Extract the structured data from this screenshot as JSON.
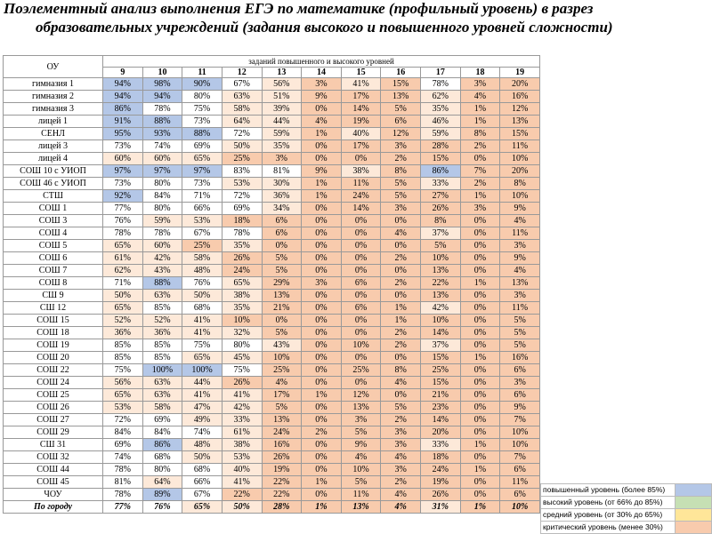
{
  "title": {
    "line1": "Поэлементный анализ выполнения ЕГЭ по математике (профильный уровень) в разрез",
    "line2": "образовательных учреждений (задания высокого и повышенного уровней сложности)"
  },
  "table": {
    "corner": "ОУ",
    "group_header": "заданий повышенного и высокого уровней",
    "columns": [
      "9",
      "10",
      "11",
      "12",
      "13",
      "14",
      "15",
      "16",
      "17",
      "18",
      "19"
    ],
    "rows": [
      {
        "name": "гимназия 1",
        "values": [
          "94%",
          "98%",
          "90%",
          "67%",
          "56%",
          "3%",
          "41%",
          "15%",
          "78%",
          "3%",
          "20%"
        ]
      },
      {
        "name": "гимназия 2",
        "values": [
          "94%",
          "94%",
          "80%",
          "63%",
          "51%",
          "9%",
          "17%",
          "13%",
          "62%",
          "4%",
          "16%"
        ]
      },
      {
        "name": "гимназия 3",
        "values": [
          "86%",
          "78%",
          "75%",
          "58%",
          "39%",
          "0%",
          "14%",
          "5%",
          "35%",
          "1%",
          "12%"
        ]
      },
      {
        "name": "лицей 1",
        "values": [
          "91%",
          "88%",
          "73%",
          "64%",
          "44%",
          "4%",
          "19%",
          "6%",
          "46%",
          "1%",
          "13%"
        ]
      },
      {
        "name": "СЕНЛ",
        "values": [
          "95%",
          "93%",
          "88%",
          "72%",
          "59%",
          "1%",
          "40%",
          "12%",
          "59%",
          "8%",
          "15%"
        ]
      },
      {
        "name": "лицей 3",
        "values": [
          "73%",
          "74%",
          "69%",
          "50%",
          "35%",
          "0%",
          "17%",
          "3%",
          "28%",
          "2%",
          "11%"
        ]
      },
      {
        "name": "лицей 4",
        "values": [
          "60%",
          "60%",
          "65%",
          "25%",
          "3%",
          "0%",
          "0%",
          "2%",
          "15%",
          "0%",
          "10%"
        ]
      },
      {
        "name": "СОШ 10 с УИОП",
        "values": [
          "97%",
          "97%",
          "97%",
          "83%",
          "81%",
          "9%",
          "38%",
          "8%",
          "86%",
          "7%",
          "20%"
        ]
      },
      {
        "name": "СОШ 46 с УИОП",
        "values": [
          "73%",
          "80%",
          "73%",
          "53%",
          "30%",
          "1%",
          "11%",
          "5%",
          "33%",
          "2%",
          "8%"
        ]
      },
      {
        "name": "СТШ",
        "values": [
          "92%",
          "84%",
          "71%",
          "72%",
          "36%",
          "1%",
          "24%",
          "5%",
          "27%",
          "1%",
          "10%"
        ]
      },
      {
        "name": "СОШ 1",
        "values": [
          "77%",
          "80%",
          "66%",
          "69%",
          "34%",
          "0%",
          "14%",
          "3%",
          "26%",
          "3%",
          "9%"
        ]
      },
      {
        "name": "СОШ 3",
        "values": [
          "76%",
          "59%",
          "53%",
          "18%",
          "6%",
          "0%",
          "0%",
          "0%",
          "8%",
          "0%",
          "4%"
        ]
      },
      {
        "name": "СОШ 4",
        "values": [
          "78%",
          "78%",
          "67%",
          "78%",
          "6%",
          "0%",
          "0%",
          "4%",
          "37%",
          "0%",
          "11%"
        ]
      },
      {
        "name": "СОШ 5",
        "values": [
          "65%",
          "60%",
          "25%",
          "35%",
          "0%",
          "0%",
          "0%",
          "0%",
          "5%",
          "0%",
          "3%"
        ]
      },
      {
        "name": "СОШ 6",
        "values": [
          "61%",
          "42%",
          "58%",
          "26%",
          "5%",
          "0%",
          "0%",
          "2%",
          "10%",
          "0%",
          "9%"
        ]
      },
      {
        "name": "СОШ 7",
        "values": [
          "62%",
          "43%",
          "48%",
          "24%",
          "5%",
          "0%",
          "0%",
          "0%",
          "13%",
          "0%",
          "4%"
        ]
      },
      {
        "name": "СОШ 8",
        "values": [
          "71%",
          "88%",
          "76%",
          "65%",
          "29%",
          "3%",
          "6%",
          "2%",
          "22%",
          "1%",
          "13%"
        ]
      },
      {
        "name": "СШ 9",
        "values": [
          "50%",
          "63%",
          "50%",
          "38%",
          "13%",
          "0%",
          "0%",
          "0%",
          "13%",
          "0%",
          "3%"
        ]
      },
      {
        "name": "СШ 12",
        "values": [
          "65%",
          "85%",
          "68%",
          "35%",
          "21%",
          "0%",
          "6%",
          "1%",
          "42%",
          "0%",
          "11%"
        ]
      },
      {
        "name": "СОШ 15",
        "values": [
          "52%",
          "52%",
          "41%",
          "10%",
          "0%",
          "0%",
          "0%",
          "1%",
          "10%",
          "0%",
          "5%"
        ]
      },
      {
        "name": "СОШ 18",
        "values": [
          "36%",
          "36%",
          "41%",
          "32%",
          "5%",
          "0%",
          "0%",
          "2%",
          "14%",
          "0%",
          "5%"
        ]
      },
      {
        "name": "СОШ 19",
        "values": [
          "85%",
          "85%",
          "75%",
          "80%",
          "43%",
          "0%",
          "10%",
          "2%",
          "37%",
          "0%",
          "5%"
        ]
      },
      {
        "name": "СОШ 20",
        "values": [
          "85%",
          "85%",
          "65%",
          "45%",
          "10%",
          "0%",
          "0%",
          "0%",
          "15%",
          "1%",
          "16%"
        ]
      },
      {
        "name": "СОШ 22",
        "values": [
          "75%",
          "100%",
          "100%",
          "75%",
          "25%",
          "0%",
          "25%",
          "8%",
          "25%",
          "0%",
          "6%"
        ]
      },
      {
        "name": "СОШ 24",
        "values": [
          "56%",
          "63%",
          "44%",
          "26%",
          "4%",
          "0%",
          "0%",
          "4%",
          "15%",
          "0%",
          "3%"
        ]
      },
      {
        "name": "СОШ 25",
        "values": [
          "65%",
          "63%",
          "41%",
          "41%",
          "17%",
          "1%",
          "12%",
          "0%",
          "21%",
          "0%",
          "6%"
        ]
      },
      {
        "name": "СОШ 26",
        "values": [
          "53%",
          "58%",
          "47%",
          "42%",
          "5%",
          "0%",
          "13%",
          "5%",
          "23%",
          "0%",
          "9%"
        ]
      },
      {
        "name": "СОШ 27",
        "values": [
          "72%",
          "69%",
          "49%",
          "33%",
          "13%",
          "0%",
          "3%",
          "2%",
          "14%",
          "0%",
          "7%"
        ]
      },
      {
        "name": "СОШ 29",
        "values": [
          "84%",
          "84%",
          "74%",
          "61%",
          "24%",
          "2%",
          "5%",
          "3%",
          "20%",
          "0%",
          "10%"
        ]
      },
      {
        "name": "СШ 31",
        "values": [
          "69%",
          "86%",
          "48%",
          "38%",
          "16%",
          "0%",
          "9%",
          "3%",
          "33%",
          "1%",
          "10%"
        ]
      },
      {
        "name": "СОШ 32",
        "values": [
          "74%",
          "68%",
          "50%",
          "53%",
          "26%",
          "0%",
          "4%",
          "4%",
          "18%",
          "0%",
          "7%"
        ]
      },
      {
        "name": "СОШ 44",
        "values": [
          "78%",
          "80%",
          "68%",
          "40%",
          "19%",
          "0%",
          "10%",
          "3%",
          "24%",
          "1%",
          "6%"
        ]
      },
      {
        "name": "СОШ 45",
        "values": [
          "81%",
          "64%",
          "66%",
          "41%",
          "22%",
          "1%",
          "5%",
          "2%",
          "19%",
          "0%",
          "11%"
        ]
      },
      {
        "name": "ЧОУ",
        "values": [
          "78%",
          "89%",
          "67%",
          "22%",
          "22%",
          "0%",
          "11%",
          "4%",
          "26%",
          "0%",
          "6%"
        ]
      },
      {
        "name": "По городу",
        "values": [
          "77%",
          "76%",
          "65%",
          "50%",
          "28%",
          "1%",
          "13%",
          "4%",
          "31%",
          "1%",
          "10%"
        ]
      }
    ]
  },
  "legend": [
    {
      "label": "повышенный уровень (более 85%)",
      "color": "#b4c7e7"
    },
    {
      "label": "высокий уровень (от 66% до 85%)",
      "color": "#c6e0b4"
    },
    {
      "label": "средний уровень (от 30% до 65%)",
      "color": "#ffe699"
    },
    {
      "label": "критический уровень (менее 30%)",
      "color": "#f8cbad"
    }
  ]
}
